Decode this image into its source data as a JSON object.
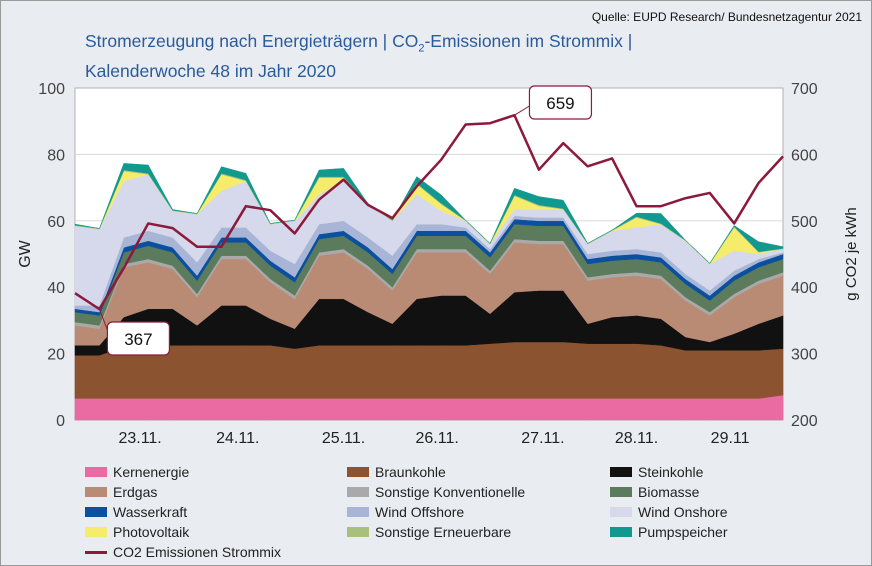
{
  "source": "Quelle:  EUPD Research/ Bundesnetzagentur 2021",
  "title_line1_a": "Stromerzeugung nach Energieträgern | CO",
  "title_line1_sub": "2",
  "title_line1_b": "-Emissionen im Strommix |",
  "title_line2": "Kalenderwoche 48 im Jahr 2020",
  "chart_data": {
    "type": "area",
    "stacked": true,
    "title": "Stromerzeugung nach Energieträgern | CO2-Emissionen im Strommix | Kalenderwoche 48 im Jahr 2020",
    "ylabel": "GW",
    "y2label": "g CO2 je kWh",
    "ylim": [
      0,
      100
    ],
    "y2lim": [
      200,
      700
    ],
    "yticks": [
      0,
      20,
      40,
      60,
      80,
      100
    ],
    "y2ticks": [
      200,
      300,
      400,
      500,
      600,
      700
    ],
    "grid": true,
    "legend_placement": "bottom",
    "xlim": [
      "2020-11-22T18:00",
      "2020-11-30T00:00"
    ],
    "xtick_labels": [
      {
        "label": "23.11.",
        "x": "2020-11-23T10:00"
      },
      {
        "label": "24.11.",
        "x": "2020-11-24T10:00"
      },
      {
        "label": "25.11.",
        "x": "2020-11-25T12:00"
      },
      {
        "label": "26.11.",
        "x": "2020-11-26T11:00"
      },
      {
        "label": "27.11.",
        "x": "2020-11-27T13:00"
      },
      {
        "label": "28.11.",
        "x": "2020-11-28T12:00"
      },
      {
        "label": "29.11",
        "x": "2020-11-29T11:00"
      }
    ],
    "x": [
      "2020-11-22T18:00",
      "2020-11-23T00:00",
      "2020-11-23T06:00",
      "2020-11-23T12:00",
      "2020-11-23T18:00",
      "2020-11-24T00:00",
      "2020-11-24T06:00",
      "2020-11-24T12:00",
      "2020-11-24T18:00",
      "2020-11-25T00:00",
      "2020-11-25T06:00",
      "2020-11-25T12:00",
      "2020-11-25T18:00",
      "2020-11-26T00:00",
      "2020-11-26T06:00",
      "2020-11-26T12:00",
      "2020-11-26T18:00",
      "2020-11-27T00:00",
      "2020-11-27T06:00",
      "2020-11-27T12:00",
      "2020-11-27T18:00",
      "2020-11-28T00:00",
      "2020-11-28T06:00",
      "2020-11-28T12:00",
      "2020-11-28T18:00",
      "2020-11-29T00:00",
      "2020-11-29T06:00",
      "2020-11-29T12:00",
      "2020-11-29T18:00",
      "2020-11-30T00:00"
    ],
    "series": [
      {
        "name": "Kernenergie",
        "color": "#e96ba2",
        "values": [
          6.5,
          6.5,
          6.5,
          6.5,
          6.5,
          6.5,
          6.5,
          6.5,
          6.5,
          6.5,
          6.5,
          6.5,
          6.5,
          6.5,
          6.5,
          6.5,
          6.5,
          6.5,
          6.5,
          6.5,
          6.5,
          6.5,
          6.5,
          6.5,
          6.5,
          6.5,
          6.5,
          6.5,
          6.5,
          7.5
        ]
      },
      {
        "name": "Braunkohle",
        "color": "#8b5330",
        "values": [
          13,
          13,
          15.5,
          16,
          16,
          16,
          16,
          16,
          16,
          15,
          16,
          16,
          16,
          16,
          16,
          16,
          16,
          16.5,
          17,
          17,
          17,
          16.5,
          16.5,
          16.5,
          16,
          14.5,
          14.5,
          14.5,
          14.5,
          14
        ]
      },
      {
        "name": "Steinkohle",
        "color": "#111111",
        "values": [
          3,
          3,
          9,
          11,
          11,
          6,
          12,
          12,
          8,
          6,
          14,
          14,
          10,
          6.5,
          14,
          15,
          15,
          9,
          15,
          15.5,
          15.5,
          6,
          8,
          8.5,
          8,
          4,
          2.5,
          5,
          8,
          10
        ]
      },
      {
        "name": "Erdgas",
        "color": "#b98a74",
        "values": [
          6,
          5,
          15,
          14,
          12,
          8.5,
          14,
          14,
          11,
          9,
          13,
          14,
          13,
          10,
          14,
          13,
          13,
          12,
          15,
          14,
          14,
          13,
          12,
          12,
          12,
          11,
          8,
          11,
          12,
          12
        ]
      },
      {
        "name": "Sonstige Konventionelle",
        "color": "#a9a9a9",
        "values": [
          1,
          1,
          1,
          1,
          1,
          1,
          1,
          1,
          1,
          1,
          1,
          1,
          1,
          1,
          1,
          1,
          1,
          1,
          1,
          1,
          1,
          1,
          1,
          1,
          1,
          1,
          1,
          1,
          1,
          1
        ]
      },
      {
        "name": "Biomasse",
        "color": "#5b7b5c",
        "values": [
          3,
          3,
          3.5,
          4,
          4,
          4,
          4,
          4,
          4,
          4,
          4,
          4,
          4,
          4,
          4,
          4,
          4,
          4,
          4.5,
          4.5,
          4.5,
          4,
          4,
          4,
          4,
          4,
          3.5,
          4,
          4,
          4
        ]
      },
      {
        "name": "Wasserkraft",
        "color": "#0b4f9f",
        "values": [
          1,
          1,
          1.5,
          1.5,
          1.5,
          1.5,
          1.5,
          1.5,
          1.5,
          1.5,
          1.5,
          1.5,
          1.5,
          1.5,
          1.5,
          1.5,
          1.5,
          1.5,
          1.5,
          1.5,
          1.5,
          1.5,
          1.5,
          1.5,
          1.5,
          1.5,
          1.5,
          1.5,
          1.5,
          1.5
        ]
      },
      {
        "name": "Wind Offshore",
        "color": "#a8b5d6",
        "values": [
          1,
          2,
          3,
          3,
          3,
          4,
          3,
          3,
          3,
          4,
          3,
          3,
          3,
          4,
          2,
          2,
          1,
          1,
          1,
          1,
          1,
          1.5,
          1.5,
          1.5,
          1.5,
          1.5,
          1.5,
          1.5,
          1,
          0.5
        ]
      },
      {
        "name": "Wind Onshore",
        "color": "#d5d9eb",
        "values": [
          24,
          23,
          17,
          17,
          8,
          14.5,
          11,
          14,
          8,
          13,
          9,
          12,
          10,
          10.5,
          9,
          4,
          2,
          1.5,
          2,
          2.5,
          2.5,
          3,
          6,
          6.5,
          8.5,
          10,
          8,
          6,
          1.5,
          1
        ]
      },
      {
        "name": "Photovoltaik",
        "color": "#f5ec6b",
        "values": [
          0,
          0,
          3,
          0,
          0,
          0,
          5,
          0,
          0,
          0,
          5,
          1,
          0,
          0,
          3,
          2,
          0,
          0,
          4,
          1,
          0,
          0,
          0,
          3,
          0,
          0,
          0,
          7,
          0.5,
          0
        ]
      },
      {
        "name": "Sonstige Erneuerbare",
        "color": "#a8c07c",
        "values": [
          0.2,
          0.2,
          0.3,
          0.3,
          0.2,
          0.2,
          0.3,
          0.3,
          0.2,
          0.2,
          0.3,
          0.3,
          0.2,
          0.2,
          0.3,
          0.3,
          0.2,
          0.2,
          0.3,
          0.3,
          0.2,
          0.2,
          0.2,
          0.3,
          0.2,
          0.2,
          0.2,
          0.3,
          0.2,
          0.2
        ]
      },
      {
        "name": "Pumpspeicher",
        "color": "#12998f",
        "values": [
          0.3,
          0,
          2,
          2.5,
          0.2,
          0,
          2,
          2,
          0,
          0,
          2,
          2.5,
          0,
          0,
          2,
          2.5,
          0,
          0,
          2,
          2.5,
          2.5,
          0,
          0,
          1,
          3,
          0,
          0,
          0.3,
          3,
          0.5
        ]
      }
    ],
    "line_series": {
      "name": "CO2 Emissionen Strommix",
      "color": "#8b1a3c",
      "axis": "right",
      "values": [
        391,
        367,
        429,
        496,
        489,
        461,
        461,
        522,
        516,
        481,
        532,
        562,
        524,
        504,
        552,
        592,
        645,
        647,
        659,
        577,
        617,
        582,
        594,
        522,
        522,
        534,
        542,
        496,
        557,
        597
      ]
    },
    "annotations": [
      {
        "text": "659",
        "x": "2020-11-27T06:00",
        "value": 659
      },
      {
        "text": "367",
        "x": "2020-11-23T00:00",
        "value": 367
      }
    ]
  },
  "legend": {
    "items": [
      {
        "label": "Kernenergie",
        "color": "#e96ba2"
      },
      {
        "label": "Braunkohle",
        "color": "#8b5330"
      },
      {
        "label": "Steinkohle",
        "color": "#111111"
      },
      {
        "label": "Erdgas",
        "color": "#b98a74"
      },
      {
        "label": "Sonstige Konventionelle",
        "color": "#a9a9a9"
      },
      {
        "label": "Biomasse",
        "color": "#5b7b5c"
      },
      {
        "label": "Wasserkraft",
        "color": "#0b4f9f"
      },
      {
        "label": "Wind Offshore",
        "color": "#a8b5d6"
      },
      {
        "label": "Wind Onshore",
        "color": "#d5d9eb"
      },
      {
        "label": "Photovoltaik",
        "color": "#f5ec6b"
      },
      {
        "label": "Sonstige Erneuerbare",
        "color": "#a8c07c"
      },
      {
        "label": "Pumpspeicher",
        "color": "#12998f"
      },
      {
        "label": "CO2 Emissionen Strommix",
        "color": "#8b1a3c",
        "line": true
      }
    ]
  }
}
